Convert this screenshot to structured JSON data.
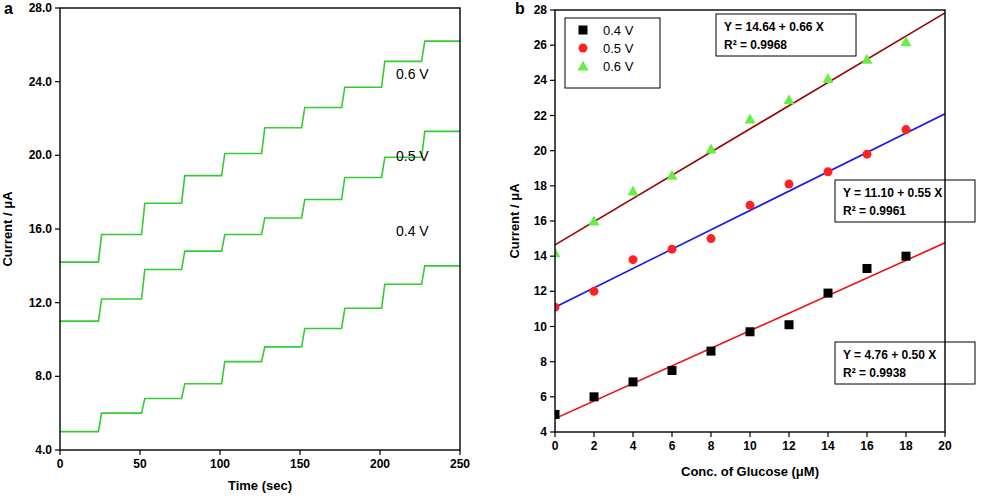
{
  "chart_data": [
    {
      "type": "line",
      "title": "a",
      "x_label": "Time (sec)",
      "y_label": "Current / μA",
      "xlim": [
        0,
        250
      ],
      "ylim": [
        4,
        28
      ],
      "xticks": [
        0,
        50,
        100,
        150,
        200,
        250
      ],
      "yticks": [
        {
          "value": 4,
          "label": "4.0"
        },
        {
          "value": 8,
          "label": "8.0"
        },
        {
          "value": 12,
          "label": "12.0"
        },
        {
          "value": 16,
          "label": "16.0"
        },
        {
          "value": 20,
          "label": "20.0"
        },
        {
          "value": 24,
          "label": "24.0"
        },
        {
          "value": 28,
          "label": "28.0"
        }
      ],
      "series": [
        {
          "name": "0.6 V",
          "color": "#33cc33",
          "x": [
            0,
            24,
            26,
            51,
            53,
            76,
            78,
            101,
            103,
            126,
            128,
            151,
            153,
            176,
            178,
            201,
            203,
            226,
            228,
            250
          ],
          "values": [
            14.2,
            14.2,
            15.7,
            15.7,
            17.4,
            17.4,
            18.9,
            18.9,
            20.1,
            20.1,
            21.5,
            21.5,
            22.6,
            22.6,
            23.7,
            23.7,
            25.1,
            25.1,
            26.2,
            26.2
          ]
        },
        {
          "name": "0.5 V",
          "color": "#33cc33",
          "x": [
            0,
            24,
            26,
            51,
            53,
            76,
            78,
            101,
            103,
            126,
            128,
            151,
            153,
            176,
            178,
            201,
            203,
            226,
            228,
            250
          ],
          "values": [
            11.0,
            11.0,
            12.2,
            12.2,
            13.8,
            13.8,
            14.8,
            14.8,
            15.7,
            15.7,
            16.6,
            16.6,
            17.6,
            17.6,
            18.8,
            18.8,
            19.9,
            19.9,
            21.3,
            21.3
          ]
        },
        {
          "name": "0.4 V",
          "color": "#33cc33",
          "x": [
            0,
            24,
            26,
            51,
            53,
            76,
            78,
            101,
            103,
            126,
            128,
            151,
            153,
            176,
            178,
            201,
            203,
            226,
            228,
            250
          ],
          "values": [
            5.0,
            5.0,
            6.0,
            6.0,
            6.8,
            6.8,
            7.6,
            7.6,
            8.8,
            8.8,
            9.6,
            9.6,
            10.6,
            10.6,
            11.7,
            11.7,
            13.0,
            13.0,
            14.0,
            14.0
          ]
        }
      ]
    },
    {
      "type": "scatter",
      "title": "b",
      "x_label": "Conc. of Glucose (μM)",
      "y_label": "Current / μA",
      "xlim": [
        0,
        20
      ],
      "ylim": [
        4,
        28
      ],
      "xticks": [
        0,
        2,
        4,
        6,
        8,
        10,
        12,
        14,
        16,
        18,
        20
      ],
      "yticks": [
        4,
        6,
        8,
        10,
        12,
        14,
        16,
        18,
        20,
        22,
        24,
        26,
        28
      ],
      "legend": "upper left",
      "series": [
        {
          "name": "0.4 V",
          "color": "#000000",
          "marker": "square",
          "x": [
            0,
            2,
            4,
            6,
            8,
            10,
            12,
            14,
            16,
            18
          ],
          "values": [
            5.0,
            6.0,
            6.85,
            7.5,
            8.6,
            9.7,
            10.1,
            11.9,
            13.3,
            14.0
          ],
          "fit": {
            "intercept": 4.76,
            "slope": 0.5,
            "color": "#ee1111",
            "equation": "Y = 4.76 + 0.50 X",
            "r2": "R² = 0.9938"
          }
        },
        {
          "name": "0.5 V",
          "color": "#ff2222",
          "marker": "circle",
          "x": [
            0,
            2,
            4,
            6,
            8,
            10,
            12,
            14,
            16,
            18
          ],
          "values": [
            11.1,
            12.0,
            13.8,
            14.4,
            15.0,
            16.9,
            18.1,
            18.8,
            19.8,
            21.2
          ],
          "fit": {
            "intercept": 11.1,
            "slope": 0.55,
            "color": "#1a1aee",
            "equation": "Y = 11.10 + 0.55 X",
            "r2": "R² = 0.9961"
          }
        },
        {
          "name": "0.6 V",
          "color": "#66ee44",
          "marker": "triangle",
          "x": [
            0,
            2,
            4,
            6,
            8,
            10,
            12,
            14,
            16,
            18
          ],
          "values": [
            14.2,
            16.0,
            17.7,
            18.6,
            20.1,
            21.8,
            22.9,
            24.1,
            25.2,
            26.2
          ],
          "fit": {
            "intercept": 14.64,
            "slope": 0.66,
            "color": "#990000",
            "equation": "Y = 14.64 + 0.66 X",
            "r2": "R² = 0.9968"
          }
        }
      ]
    }
  ]
}
